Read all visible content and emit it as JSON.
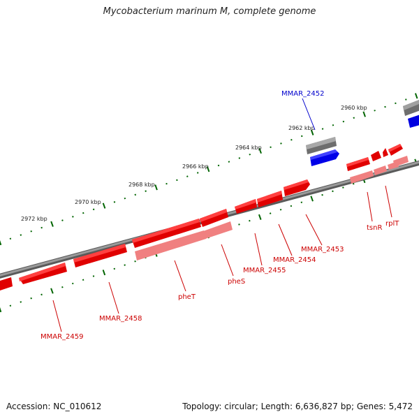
{
  "title": "Mycobacterium marinum M, complete genome",
  "footer": {
    "accession_label": "Accession:",
    "accession": "NC_010612",
    "topology_label": "Topology:",
    "topology": "circular",
    "length_label": "Length:",
    "length": "6,636,827 bp",
    "genes_label": "Genes:",
    "genes": "5,472"
  },
  "colors": {
    "forward_gene": "#ff0000",
    "reverse_gene": "#ff0000",
    "rna": "#f08080",
    "other_strand": "#0000ff",
    "backbone": "#808080",
    "tick": "#006400",
    "label_red": "#cc0000",
    "label_blue": "#0000cc"
  },
  "ruler": {
    "unit": "kbp",
    "labels": [
      "2960 kbp",
      "2962 kbp",
      "2964 kbp",
      "2966 kbp",
      "2968 kbp",
      "2970 kbp",
      "2972 kbp"
    ]
  },
  "gene_labels": [
    {
      "id": "mmar2452",
      "text": "MMAR_2452",
      "color": "blue"
    },
    {
      "id": "mmar2453",
      "text": "MMAR_2453",
      "color": "red"
    },
    {
      "id": "mmar2454",
      "text": "MMAR_2454",
      "color": "red"
    },
    {
      "id": "mmar2455",
      "text": "MMAR_2455",
      "color": "red"
    },
    {
      "id": "phes",
      "text": "pheS",
      "color": "red"
    },
    {
      "id": "phet",
      "text": "pheT",
      "color": "red"
    },
    {
      "id": "mmar2458",
      "text": "MMAR_2458",
      "color": "red"
    },
    {
      "id": "mmar2459",
      "text": "MMAR_2459",
      "color": "red"
    },
    {
      "id": "tsnr",
      "text": "tsnR",
      "color": "red"
    },
    {
      "id": "rplt",
      "text": "rplT",
      "color": "red"
    }
  ]
}
